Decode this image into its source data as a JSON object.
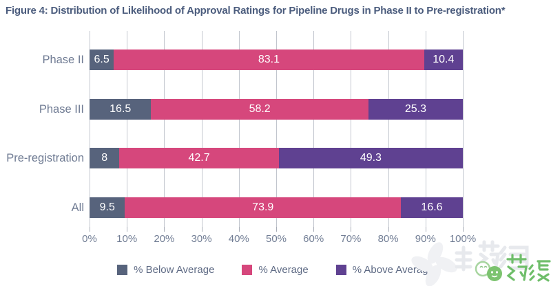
{
  "title": "Figure 4: Distribution of Likelihood of Approval Ratings for Pipeline Drugs in Phase II to Pre-registration*",
  "chart_data": {
    "type": "bar",
    "orientation": "horizontal",
    "stacked": true,
    "title": "Figure 4: Distribution of Likelihood of Approval Ratings for Pipeline Drugs in Phase II to Pre-registration*",
    "categories": [
      "Phase II",
      "Phase III",
      "Pre-registration",
      "All"
    ],
    "series": [
      {
        "name": "% Below Average",
        "color": "#57637c",
        "values": [
          6.5,
          16.5,
          8,
          9.5
        ]
      },
      {
        "name": "% Average",
        "color": "#d6477c",
        "values": [
          83.1,
          58.2,
          42.7,
          73.9
        ]
      },
      {
        "name": "% Above Average",
        "color": "#5f4191",
        "values": [
          10.4,
          25.3,
          49.3,
          16.6
        ]
      }
    ],
    "x_ticks": [
      "0%",
      "10%",
      "20%",
      "30%",
      "40%",
      "50%",
      "60%",
      "70%",
      "80%",
      "90%",
      "100%"
    ],
    "xlim": [
      0,
      100
    ],
    "xlabel": "",
    "ylabel": "",
    "grid": "vertical",
    "legend_position": "bottom",
    "value_labels": "inside-center"
  },
  "watermark": {
    "brand_text": "药渡",
    "background_text": "新药汇",
    "brand_color": "#6fbe6a"
  },
  "colors": {
    "title": "#4b5c7d",
    "axis_labels": "#727e95",
    "gridline": "#c2c6ce",
    "below_average": "#57637c",
    "average": "#d6477c",
    "above_average": "#5f4191",
    "bar_value_text": "#ffffff",
    "background": "#ffffff"
  }
}
